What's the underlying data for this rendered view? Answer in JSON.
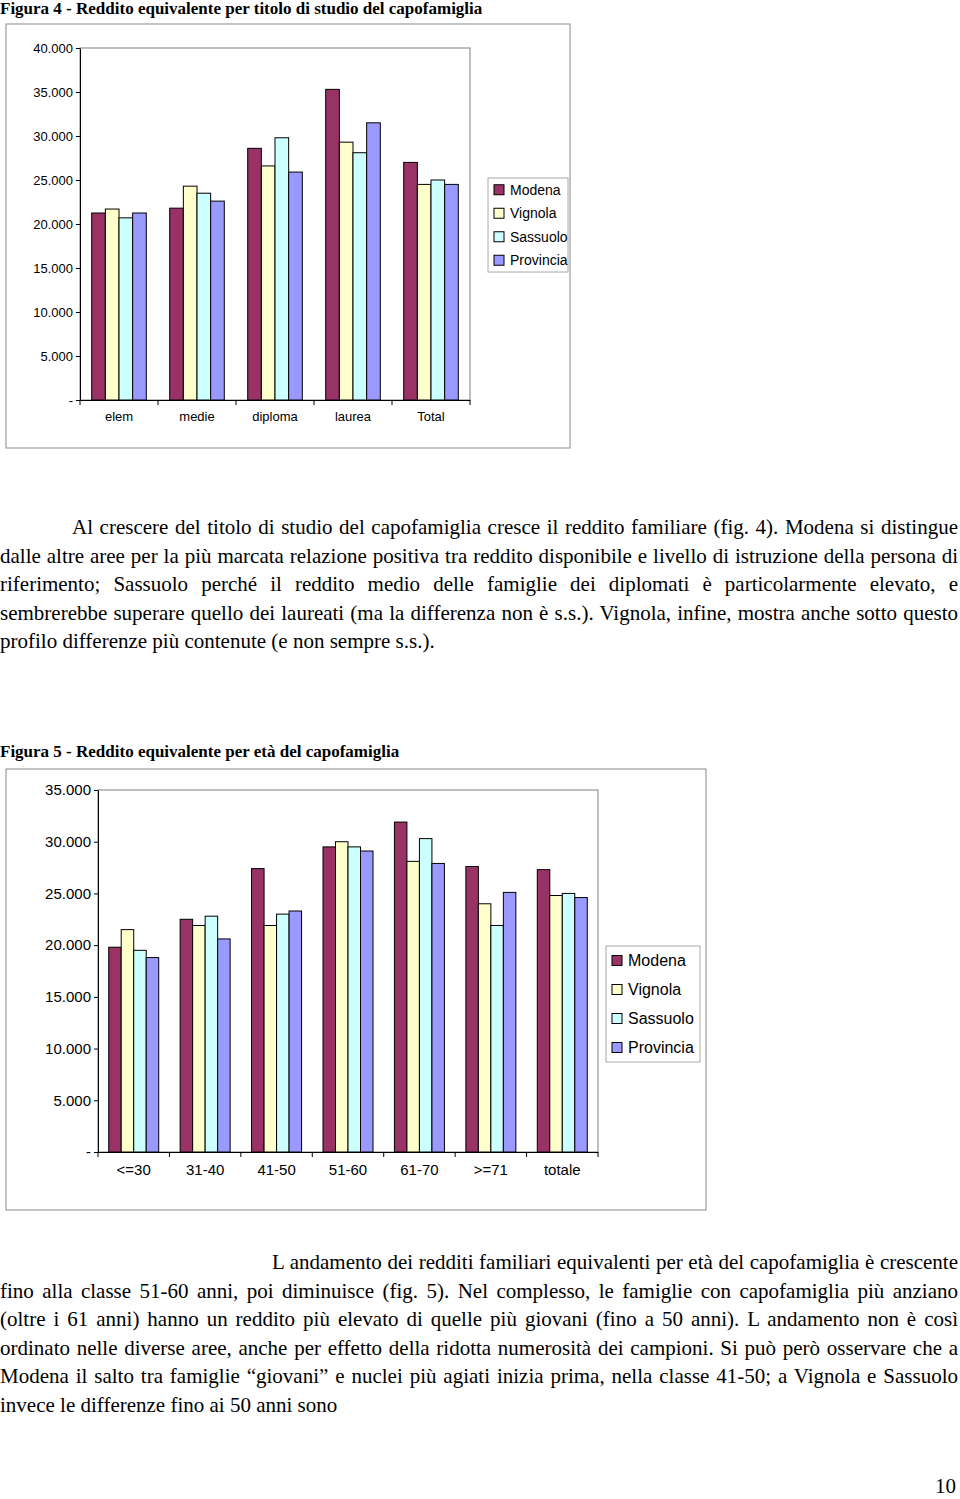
{
  "chart_data": [
    {
      "type": "bar",
      "title": "Figura 4 - Reddito equivalente per titolo di studio del capofamiglia",
      "categories": [
        "elem",
        "medie",
        "diploma",
        "laurea",
        "Total"
      ],
      "series": [
        {
          "name": "Modena",
          "color": "#993366",
          "values": [
            21250,
            21800,
            28600,
            35300,
            27000
          ]
        },
        {
          "name": "Vignola",
          "color": "#ffffcc",
          "values": [
            21700,
            24300,
            26600,
            29300,
            24500
          ]
        },
        {
          "name": "Sassuolo",
          "color": "#ccffff",
          "values": [
            20700,
            23500,
            29800,
            28100,
            25000
          ]
        },
        {
          "name": "Provincia",
          "color": "#9999ff",
          "values": [
            21250,
            22600,
            25900,
            31500,
            24500
          ]
        }
      ],
      "ylim": [
        0,
        40000
      ],
      "yticks": [
        {
          "value": 0,
          "label": "-"
        },
        {
          "value": 5000,
          "label": "5.000"
        },
        {
          "value": 10000,
          "label": "10.000"
        },
        {
          "value": 15000,
          "label": "15.000"
        },
        {
          "value": 20000,
          "label": "20.000"
        },
        {
          "value": 25000,
          "label": "25.000"
        },
        {
          "value": 30000,
          "label": "30.000"
        },
        {
          "value": 35000,
          "label": "35.000"
        },
        {
          "value": 40000,
          "label": "40.000"
        }
      ],
      "grid": false,
      "legend": "right"
    },
    {
      "type": "bar",
      "title": "Figura 5 - Reddito equivalente per età del capofamiglia",
      "categories": [
        "<=30",
        "31-40",
        "41-50",
        "51-60",
        "61-70",
        ">=71",
        "totale"
      ],
      "series": [
        {
          "name": "Modena",
          "color": "#993366",
          "values": [
            19800,
            22500,
            27400,
            29500,
            31900,
            27600,
            27300
          ]
        },
        {
          "name": "Vignola",
          "color": "#ffffcc",
          "values": [
            21500,
            21900,
            21900,
            30000,
            28100,
            24000,
            24800
          ]
        },
        {
          "name": "Sassuolo",
          "color": "#ccffff",
          "values": [
            19500,
            22800,
            23000,
            29500,
            30300,
            21900,
            25000
          ]
        },
        {
          "name": "Provincia",
          "color": "#9999ff",
          "values": [
            18800,
            20600,
            23300,
            29100,
            27900,
            25100,
            24600
          ]
        }
      ],
      "ylim": [
        0,
        35000
      ],
      "yticks": [
        {
          "value": 0,
          "label": "-"
        },
        {
          "value": 5000,
          "label": "5.000"
        },
        {
          "value": 10000,
          "label": "10.000"
        },
        {
          "value": 15000,
          "label": "15.000"
        },
        {
          "value": 20000,
          "label": "20.000"
        },
        {
          "value": 25000,
          "label": "25.000"
        },
        {
          "value": 30000,
          "label": "30.000"
        },
        {
          "value": 35000,
          "label": "35.000"
        }
      ],
      "grid": false,
      "legend": "right"
    }
  ],
  "document": {
    "paragraphs": [
      "Al crescere del titolo di studio del capofamiglia cresce il reddito familiare (fig. 4). Modena si distingue dalle altre aree per la più marcata relazione positiva tra reddito disponibile e livello di istruzione della persona di riferimento; Sassuolo perché il reddito medio delle famiglie dei diplomati è particolarmente elevato, e sembrerebbe superare quello dei laureati (ma la differenza non è s.s.). Vignola, infine, mostra anche sotto questo profilo differenze più contenute (e non sempre s.s.).",
      "L andamento dei redditi familiari equivalenti per età del capofamiglia è crescente fino alla classe 51-60 anni, poi diminuisce (fig. 5). Nel complesso, le famiglie con capofamiglia più anziano (oltre i 61 anni) hanno un reddito più elevato di quelle più giovani (fino a 50 anni). L andamento non è così ordinato nelle diverse aree, anche per effetto della ridotta numerosità dei campioni. Si può però osservare che a Modena il salto tra famiglie “giovani” e nuclei più agiati inizia prima, nella classe 41-50; a Vignola e Sassuolo invece le differenze fino ai 50 anni sono"
    ],
    "page_number": "10"
  }
}
